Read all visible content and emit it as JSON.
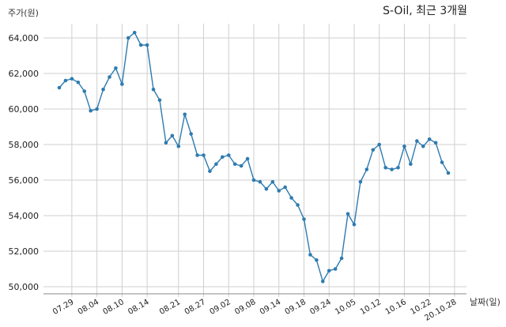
{
  "chart_data": {
    "type": "line",
    "title": "S-Oil, 최근 3개월",
    "ylabel": "주가(원)",
    "xlabel": "날짜(일)",
    "ylim": [
      50000,
      64500
    ],
    "yticks": [
      50000,
      52000,
      54000,
      56000,
      58000,
      60000,
      62000,
      64000
    ],
    "ytick_labels": [
      "50,000",
      "52,000",
      "54,000",
      "56,000",
      "58,000",
      "60,000",
      "62,000",
      "64,000"
    ],
    "xtick_labels": [
      "07.29",
      "08.04",
      "08.10",
      "08.14",
      "08.21",
      "08.27",
      "09.02",
      "09.08",
      "09.14",
      "09.18",
      "09.24",
      "10.05",
      "10.12",
      "10.16",
      "10.22",
      "20.10.28"
    ],
    "xtick_index": [
      2,
      6,
      10,
      14,
      19,
      23,
      27,
      31,
      35,
      39,
      43,
      47,
      51,
      55,
      59,
      63
    ],
    "grid": true,
    "line_color": "#2e7bb0",
    "series": [
      {
        "values": [
          61200,
          61600,
          61700,
          61500,
          61000,
          59900,
          60000,
          61100,
          61800,
          62300,
          61400,
          64000,
          64300,
          63600,
          63600,
          61100,
          60500,
          58100,
          58500,
          57900,
          59700,
          58600,
          57400,
          57400,
          56500,
          56900,
          57300,
          57400,
          56900,
          56800,
          57200,
          56000,
          55900,
          55500,
          55900,
          55400,
          55600,
          55000,
          54600,
          53800,
          51800,
          51500,
          50300,
          50900,
          51000,
          51600,
          54100,
          53500,
          55900,
          56600,
          57700,
          58000,
          56700,
          56600,
          56700,
          57900,
          56900,
          58200,
          57900,
          58300,
          58100,
          57000,
          56400
        ]
      }
    ]
  }
}
